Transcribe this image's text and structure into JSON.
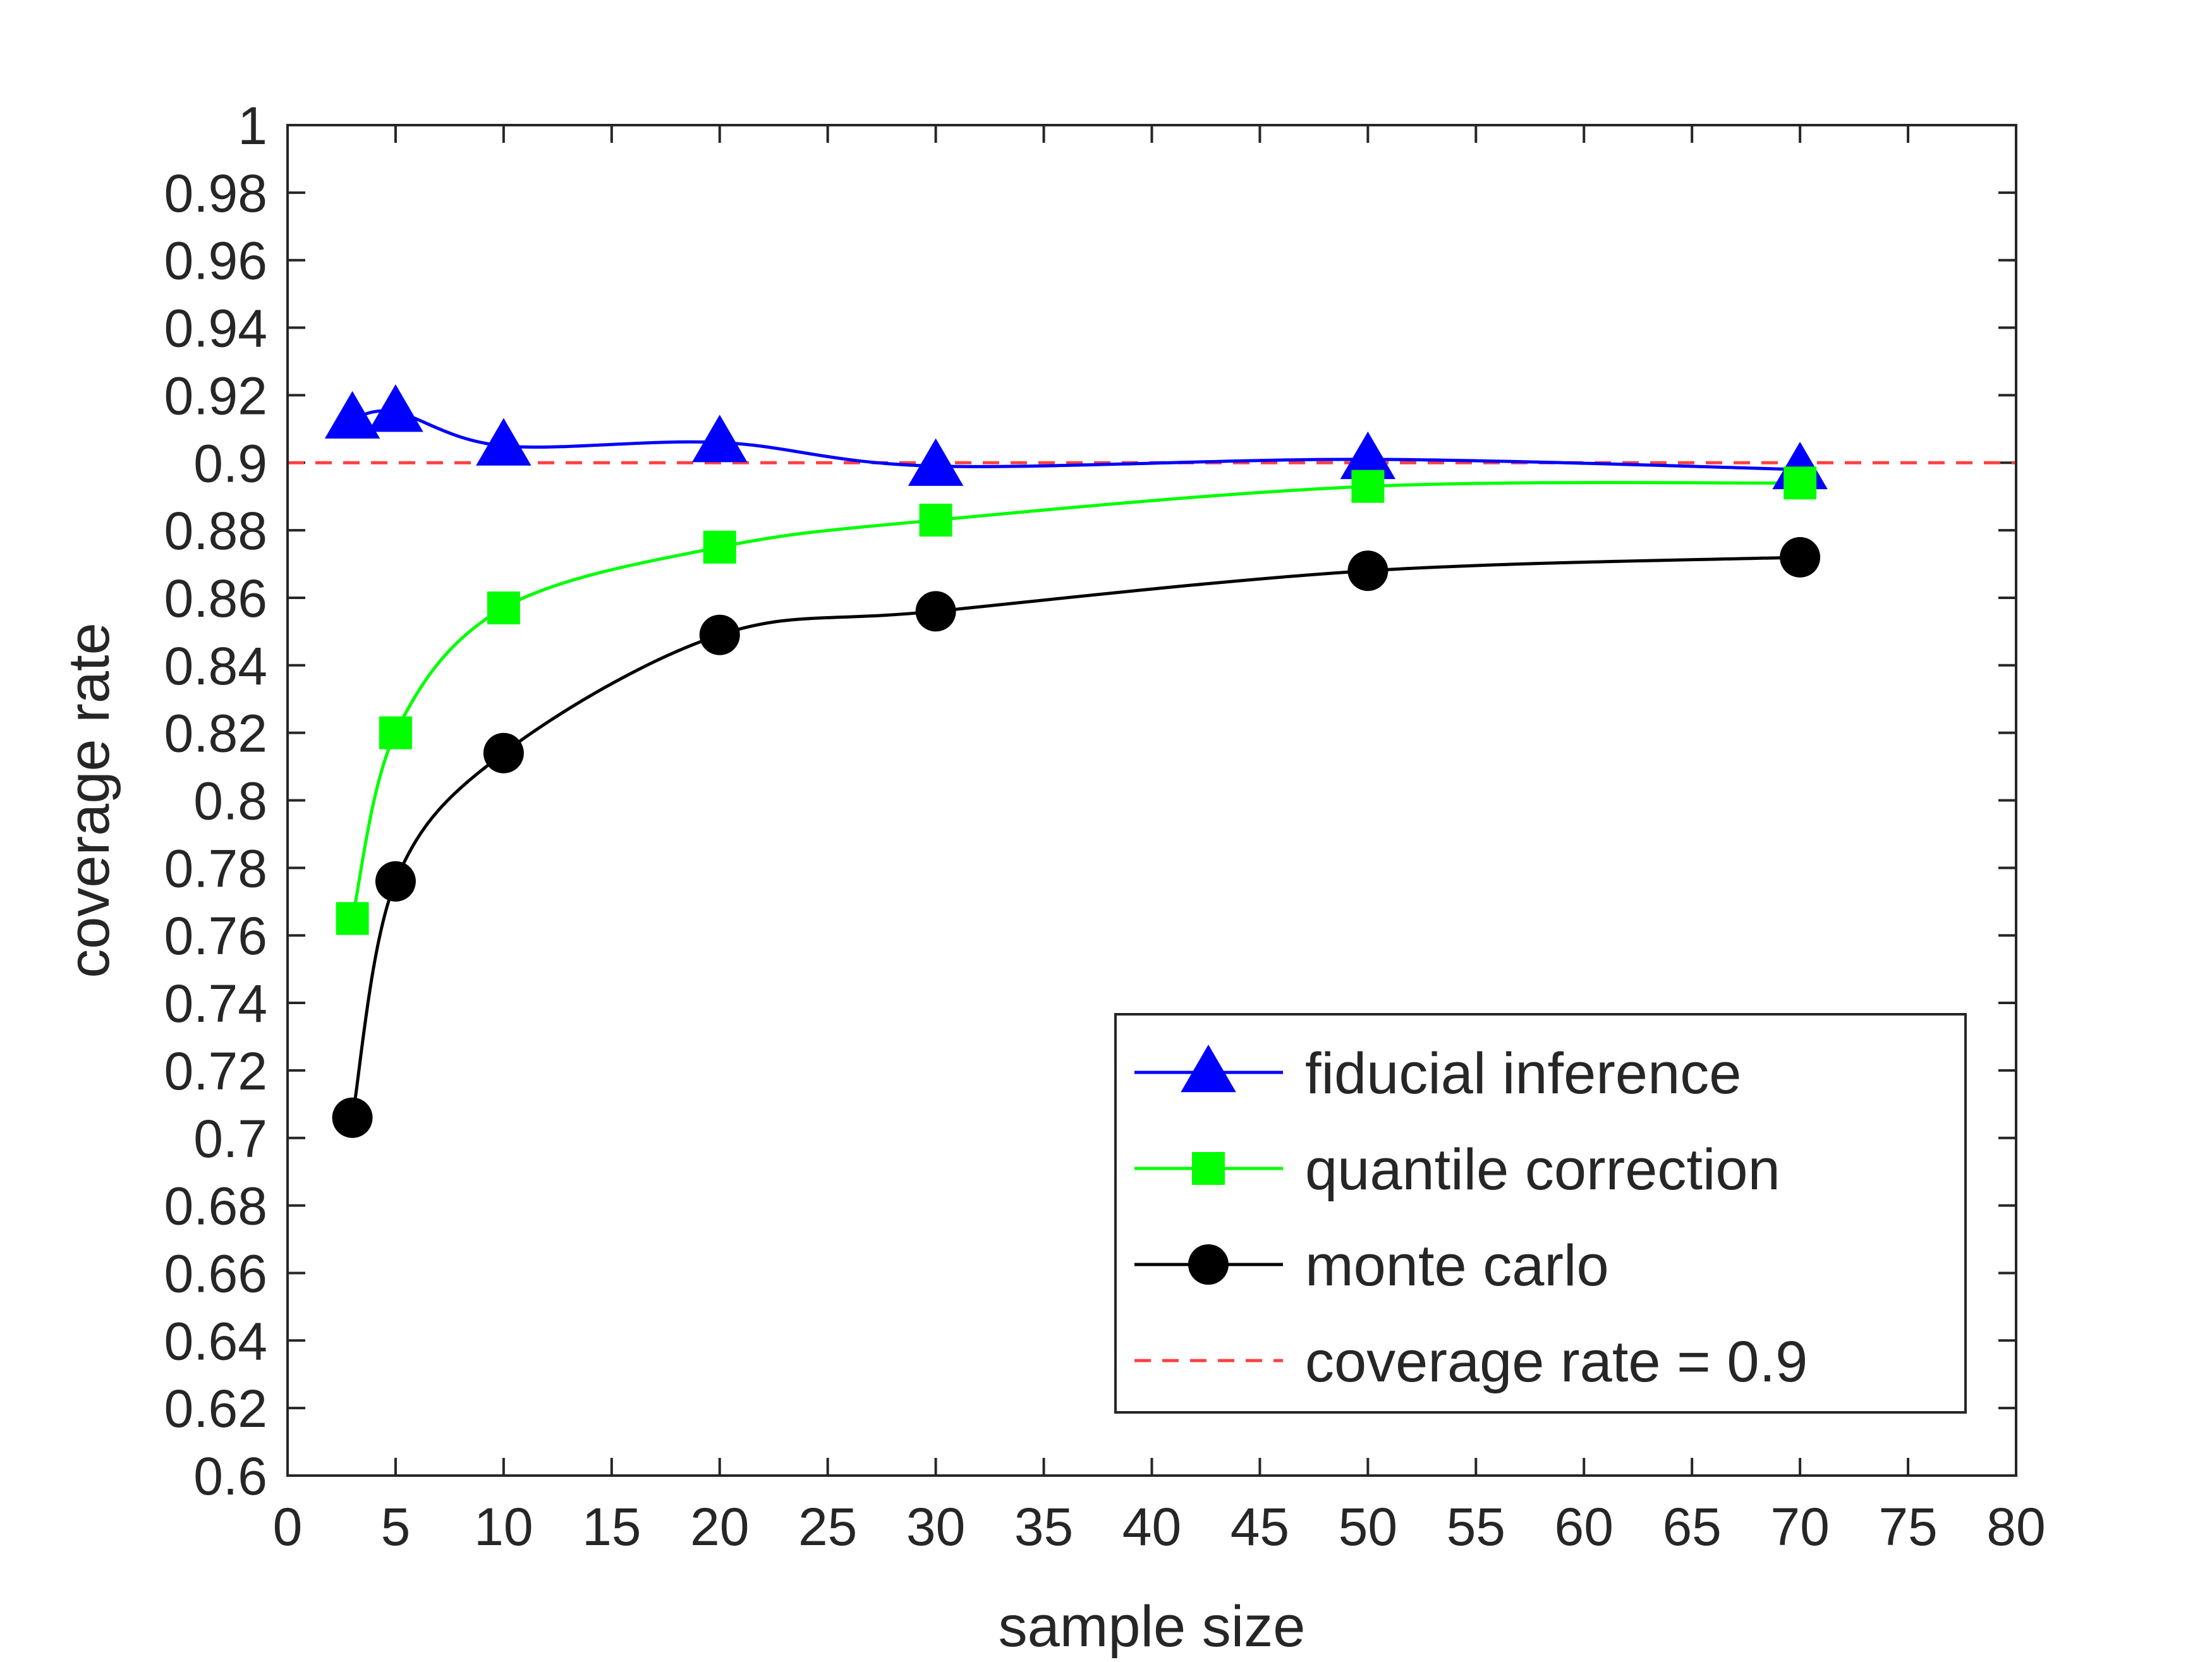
{
  "chart_data": {
    "type": "line",
    "title": "",
    "xlabel": "sample size",
    "ylabel": "coverage rate",
    "xlim": [
      0,
      80
    ],
    "ylim": [
      0.6,
      1
    ],
    "xticks": [
      0,
      5,
      10,
      15,
      20,
      25,
      30,
      35,
      40,
      45,
      50,
      55,
      60,
      65,
      70,
      75,
      80
    ],
    "xtick_labels": [
      "0",
      "5",
      "10",
      "15",
      "20",
      "25",
      "30",
      "35",
      "40",
      "45",
      "50",
      "55",
      "60",
      "65",
      "70",
      "75",
      "80"
    ],
    "yticks": [
      0.6,
      0.62,
      0.64,
      0.66,
      0.68,
      0.7,
      0.72,
      0.74,
      0.76,
      0.78,
      0.8,
      0.82,
      0.84,
      0.86,
      0.88,
      0.9,
      0.92,
      0.94,
      0.96,
      0.98,
      1
    ],
    "ytick_labels": [
      "0.6",
      "0.62",
      "0.64",
      "0.66",
      "0.68",
      "0.7",
      "0.72",
      "0.74",
      "0.76",
      "0.78",
      "0.8",
      "0.82",
      "0.84",
      "0.86",
      "0.88",
      "0.9",
      "0.92",
      "0.94",
      "0.96",
      "0.98",
      "1"
    ],
    "grid": false,
    "legend_position": "bottom-right",
    "x": [
      3,
      5,
      10,
      20,
      30,
      50,
      70
    ],
    "series": [
      {
        "name": "fiducial inference",
        "color": "#0000ff",
        "marker": "triangle",
        "values": [
          0.913,
          0.915,
          0.905,
          0.906,
          0.899,
          0.901,
          0.898
        ]
      },
      {
        "name": "quantile correction",
        "color": "#00ff00",
        "marker": "square",
        "values": [
          0.765,
          0.82,
          0.857,
          0.875,
          0.883,
          0.893,
          0.894
        ]
      },
      {
        "name": "monte carlo",
        "color": "#000000",
        "marker": "circle",
        "values": [
          0.706,
          0.776,
          0.814,
          0.849,
          0.856,
          0.868,
          0.872
        ]
      }
    ],
    "reference_line": {
      "name": "coverage rate = 0.9",
      "y": 0.9,
      "color": "#ff4040",
      "style": "dashed"
    }
  }
}
